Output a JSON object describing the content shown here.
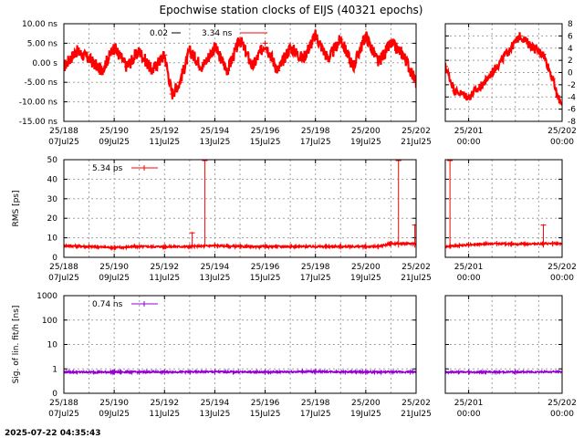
{
  "title": "Epochwise station clocks of EIJS (40321 epochs)",
  "timestamp": "2025-07-22 04:35:43",
  "colors": {
    "clock": "#ff0000",
    "rms": "#ff0000",
    "sig": "#9400d3",
    "grid": "#a0a0a0"
  },
  "chart_data": [
    {
      "id": "clock",
      "type": "scatter",
      "ylabel": "",
      "legend": {
        "placement": "top-left",
        "entries": [
          {
            "text": "0.02",
            "color": "#000000"
          },
          {
            "text": "3.34 ns",
            "color": "#ff0000"
          }
        ]
      },
      "main": {
        "ylim": [
          -15,
          10
        ],
        "ytick_values": [
          10,
          5,
          0,
          -5,
          -10,
          -15
        ],
        "ytick_labels": [
          "10.00 ns",
          "5.00 ns",
          "0.00  s",
          "-5.00 ns",
          "-10.00 ns",
          "-15.00 ns"
        ],
        "xlim": [
          188,
          202
        ],
        "xticks": [
          {
            "v": 188,
            "a": "25/188",
            "b": "07Jul25"
          },
          {
            "v": 190,
            "a": "25/190",
            "b": "09Jul25"
          },
          {
            "v": 192,
            "a": "25/192",
            "b": "11Jul25"
          },
          {
            "v": 194,
            "a": "25/194",
            "b": "13Jul25"
          },
          {
            "v": 196,
            "a": "25/196",
            "b": "15Jul25"
          },
          {
            "v": 198,
            "a": "25/198",
            "b": "17Jul25"
          },
          {
            "v": 200,
            "a": "25/200",
            "b": "19Jul25"
          },
          {
            "v": 202,
            "a": "25/202",
            "b": "21Jul25"
          }
        ],
        "series": [
          {
            "name": "3.34 ns",
            "x": [
              188,
              188.5,
              189,
              189.5,
              190,
              190.5,
              191,
              191.5,
              192,
              192.3,
              192.6,
              193,
              193.5,
              194,
              194.5,
              195,
              195.5,
              196,
              196.5,
              197,
              197.5,
              198,
              198.5,
              199,
              199.5,
              200,
              200.5,
              201,
              201.5,
              202
            ],
            "y": [
              -1,
              3,
              1,
              -2,
              4,
              -1,
              3,
              -2,
              2,
              -8,
              -5,
              3,
              -1,
              4,
              -2,
              6,
              -1,
              5,
              -2,
              4,
              1,
              7,
              1,
              6,
              -1,
              7,
              0,
              5,
              2,
              -5
            ]
          }
        ]
      },
      "zoom": {
        "ylim": [
          -8,
          8
        ],
        "ytick_values": [
          8,
          6,
          4,
          2,
          0,
          -2,
          -4,
          -6,
          -8
        ],
        "ytick_labels": [
          "8",
          "6",
          "4",
          "2",
          "0",
          "-2",
          "-4",
          "-6",
          "-8"
        ],
        "xlim": [
          200.75,
          202
        ],
        "xticks": [
          {
            "v": 201,
            "a": "25/201",
            "b": "00:00"
          },
          {
            "v": 202,
            "a": "25/202",
            "b": "00:00"
          }
        ],
        "series": [
          {
            "name": "3.34 ns",
            "x": [
              200.75,
              200.85,
              201,
              201.15,
              201.3,
              201.45,
              201.55,
              201.7,
              201.8,
              201.9,
              201.95,
              202
            ],
            "y": [
              1,
              -3,
              -4,
              -2,
              1,
              4,
              6,
              4,
              3,
              -1,
              -4,
              -5
            ]
          }
        ]
      }
    },
    {
      "id": "rms",
      "type": "scatter",
      "ylabel": "RMS [ps]",
      "legend": {
        "placement": "top-left",
        "entries": [
          {
            "text": "5.34 ps",
            "color": "#ff0000"
          }
        ]
      },
      "main": {
        "ylim": [
          0,
          50
        ],
        "ytick_values": [
          50,
          40,
          30,
          20,
          10,
          0
        ],
        "ytick_labels": [
          "50",
          "40",
          "30",
          "20",
          "10",
          "0"
        ],
        "xlim": [
          188,
          202
        ],
        "xticks": [
          {
            "v": 188,
            "a": "25/188",
            "b": "07Jul25"
          },
          {
            "v": 190,
            "a": "25/190",
            "b": "09Jul25"
          },
          {
            "v": 192,
            "a": "25/192",
            "b": "11Jul25"
          },
          {
            "v": 194,
            "a": "25/194",
            "b": "13Jul25"
          },
          {
            "v": 196,
            "a": "25/196",
            "b": "15Jul25"
          },
          {
            "v": 198,
            "a": "25/198",
            "b": "17Jul25"
          },
          {
            "v": 200,
            "a": "25/200",
            "b": "19Jul25"
          },
          {
            "v": 202,
            "a": "25/202",
            "b": "21Jul25"
          }
        ],
        "series": [
          {
            "name": "5.34 ps",
            "x": [
              188,
              189,
              190,
              191,
              192,
              193,
              194,
              195,
              196,
              197,
              198,
              199,
              200,
              200.5,
              201,
              202
            ],
            "y": [
              6,
              5.5,
              5,
              5.5,
              5.5,
              5.5,
              6,
              5.5,
              5.5,
              5.5,
              5.5,
              5.5,
              5.5,
              5.5,
              7,
              7
            ]
          }
        ],
        "spikes": [
          {
            "x": 193.1,
            "y": 13
          },
          {
            "x": 193.6,
            "y": 50
          },
          {
            "x": 201.3,
            "y": 50
          },
          {
            "x": 201.95,
            "y": 17
          }
        ]
      },
      "zoom": {
        "ylim": [
          0,
          50
        ],
        "ytick_values": [
          50,
          40,
          30,
          20,
          10,
          0
        ],
        "ytick_labels": [],
        "xlim": [
          200.75,
          202
        ],
        "xticks": [
          {
            "v": 201,
            "a": "25/201",
            "b": "00:00"
          },
          {
            "v": 202,
            "a": "25/202",
            "b": "00:00"
          }
        ],
        "series": [
          {
            "name": "5.34 ps",
            "x": [
              200.75,
              200.9,
              201,
              201.3,
              201.6,
              201.9,
              202
            ],
            "y": [
              5.5,
              6,
              6.5,
              7,
              6.8,
              7,
              7
            ]
          }
        ],
        "spikes": [
          {
            "x": 200.8,
            "y": 50
          },
          {
            "x": 201.8,
            "y": 17
          }
        ]
      }
    },
    {
      "id": "sig",
      "type": "scatter",
      "ylabel": "Sig. of lin. fit/h [ns]",
      "legend": {
        "placement": "top-left",
        "entries": [
          {
            "text": "0.74 ns",
            "color": "#9400d3"
          }
        ]
      },
      "main": {
        "scale": "log",
        "ylim": [
          0.1,
          1000
        ],
        "ytick_values": [
          1000,
          100,
          10,
          1,
          0.1
        ],
        "ytick_labels": [
          "1000",
          "100",
          "10",
          "1",
          "0"
        ],
        "xlim": [
          188,
          202
        ],
        "xticks": [
          {
            "v": 188,
            "a": "25/188",
            "b": "07Jul25"
          },
          {
            "v": 190,
            "a": "25/190",
            "b": "09Jul25"
          },
          {
            "v": 192,
            "a": "25/192",
            "b": "11Jul25"
          },
          {
            "v": 194,
            "a": "25/194",
            "b": "13Jul25"
          },
          {
            "v": 196,
            "a": "25/196",
            "b": "15Jul25"
          },
          {
            "v": 198,
            "a": "25/198",
            "b": "17Jul25"
          },
          {
            "v": 200,
            "a": "25/200",
            "b": "19Jul25"
          },
          {
            "v": 202,
            "a": "25/202",
            "b": "21Jul25"
          }
        ],
        "series": [
          {
            "name": "0.74 ns",
            "x": [
              188,
              190,
              192,
              194,
              196,
              198,
              200,
              202
            ],
            "y": [
              0.74,
              0.74,
              0.75,
              0.76,
              0.74,
              0.78,
              0.74,
              0.75
            ]
          }
        ]
      },
      "zoom": {
        "scale": "log",
        "ylim": [
          0.1,
          1000
        ],
        "ytick_values": [
          1000,
          100,
          10,
          1,
          0.1
        ],
        "ytick_labels": [],
        "xlim": [
          200.75,
          202
        ],
        "xticks": [
          {
            "v": 201,
            "a": "25/201",
            "b": "00:00"
          },
          {
            "v": 202,
            "a": "25/202",
            "b": "00:00"
          }
        ],
        "series": [
          {
            "name": "0.74 ns",
            "x": [
              200.75,
              201,
              201.5,
              202
            ],
            "y": [
              0.74,
              0.74,
              0.75,
              0.76
            ]
          }
        ]
      }
    }
  ]
}
